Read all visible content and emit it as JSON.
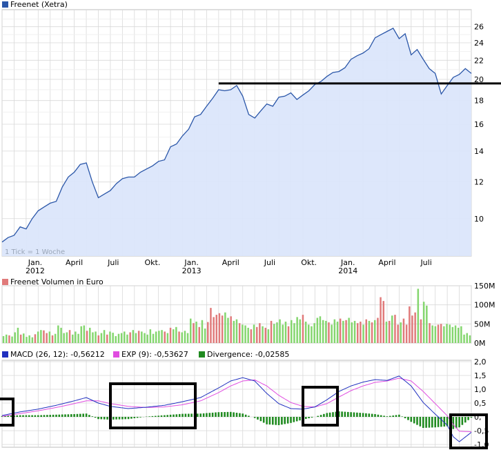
{
  "colors": {
    "price_line": "#2a56a8",
    "price_fill": "#dbe6fb",
    "grid": "#d8d8d8",
    "volume_up": "#84d66e",
    "volume_down": "#e07a7a",
    "macd": "#1f2fbf",
    "exp": "#e04ce0",
    "divergence": "#1f8a1f",
    "annotation": "#000000"
  },
  "icons": {
    "price_legend": "blue-square-icon",
    "volume_legend": "red-square-icon",
    "macd_legend": "blue-square-icon",
    "exp_legend": "magenta-square-icon",
    "div_legend": "green-square-icon"
  },
  "chart_data": [
    {
      "type": "area",
      "title": "Freenet (Xetra)",
      "note": "1 Tick = 1 Woche",
      "scale": "log",
      "ylim": [
        8.3,
        28.3
      ],
      "yticks": [
        10,
        12,
        14,
        16,
        18,
        20,
        22,
        24,
        26
      ],
      "x_labels": [
        {
          "text": "Jan.",
          "sub": "2012",
          "w": 11
        },
        {
          "text": "April",
          "sub": "",
          "w": 24
        },
        {
          "text": "Juli",
          "sub": "",
          "w": 37
        },
        {
          "text": "Okt.",
          "sub": "",
          "w": 50
        },
        {
          "text": "Jan.",
          "sub": "2013",
          "w": 63
        },
        {
          "text": "April",
          "sub": "",
          "w": 76
        },
        {
          "text": "Juli",
          "sub": "",
          "w": 89
        },
        {
          "text": "Okt.",
          "sub": "",
          "w": 102
        },
        {
          "text": "Jan.",
          "sub": "2014",
          "w": 115
        },
        {
          "text": "April",
          "sub": "",
          "w": 128
        },
        {
          "text": "Juli",
          "sub": "",
          "w": 141
        }
      ],
      "resistance_level": 19.6,
      "series": [
        {
          "name": "Freenet (Xetra)",
          "points": [
            [
              0,
              8.9
            ],
            [
              2,
              9.1
            ],
            [
              4,
              9.2
            ],
            [
              6,
              9.6
            ],
            [
              8,
              9.5
            ],
            [
              10,
              10.0
            ],
            [
              12,
              10.4
            ],
            [
              14,
              10.6
            ],
            [
              16,
              10.8
            ],
            [
              18,
              10.9
            ],
            [
              20,
              11.7
            ],
            [
              22,
              12.3
            ],
            [
              24,
              12.6
            ],
            [
              26,
              13.1
            ],
            [
              28,
              13.2
            ],
            [
              30,
              12.0
            ],
            [
              32,
              11.1
            ],
            [
              34,
              11.3
            ],
            [
              36,
              11.5
            ],
            [
              38,
              11.9
            ],
            [
              40,
              12.2
            ],
            [
              42,
              12.3
            ],
            [
              44,
              12.3
            ],
            [
              46,
              12.6
            ],
            [
              48,
              12.8
            ],
            [
              50,
              13.0
            ],
            [
              52,
              13.3
            ],
            [
              54,
              13.4
            ],
            [
              56,
              14.3
            ],
            [
              58,
              14.5
            ],
            [
              60,
              15.1
            ],
            [
              62,
              15.6
            ],
            [
              64,
              16.6
            ],
            [
              66,
              16.8
            ],
            [
              68,
              17.5
            ],
            [
              70,
              18.2
            ],
            [
              72,
              19.0
            ],
            [
              74,
              18.9
            ],
            [
              76,
              19.0
            ],
            [
              78,
              19.4
            ],
            [
              80,
              18.4
            ],
            [
              82,
              16.8
            ],
            [
              84,
              16.5
            ],
            [
              86,
              17.1
            ],
            [
              88,
              17.7
            ],
            [
              90,
              17.5
            ],
            [
              92,
              18.3
            ],
            [
              94,
              18.4
            ],
            [
              96,
              18.7
            ],
            [
              98,
              18.1
            ],
            [
              100,
              18.5
            ],
            [
              102,
              18.9
            ],
            [
              104,
              19.5
            ],
            [
              106,
              19.8
            ],
            [
              108,
              20.3
            ],
            [
              110,
              20.7
            ],
            [
              112,
              20.8
            ],
            [
              114,
              21.2
            ],
            [
              116,
              22.1
            ],
            [
              118,
              22.5
            ],
            [
              120,
              22.8
            ],
            [
              122,
              23.3
            ],
            [
              124,
              24.6
            ],
            [
              126,
              25.0
            ],
            [
              128,
              25.4
            ],
            [
              130,
              25.8
            ],
            [
              132,
              24.5
            ],
            [
              134,
              25.1
            ],
            [
              136,
              22.6
            ],
            [
              138,
              23.2
            ],
            [
              140,
              22.1
            ],
            [
              142,
              21.1
            ],
            [
              144,
              20.6
            ],
            [
              146,
              18.6
            ],
            [
              148,
              19.4
            ],
            [
              150,
              20.2
            ],
            [
              152,
              20.5
            ],
            [
              154,
              21.1
            ],
            [
              156,
              20.6
            ]
          ]
        }
      ]
    },
    {
      "type": "bar",
      "title": "Freenet Volumen in Euro",
      "unit": "Euro",
      "ylim": [
        0,
        150
      ],
      "yticks": [
        "0M",
        "50M",
        "100M",
        "150M"
      ],
      "series": [
        {
          "name": "Freenet Volumen in Euro",
          "values_million": [
            18,
            22,
            20,
            17,
            28,
            40,
            22,
            25,
            16,
            20,
            15,
            23,
            30,
            34,
            33,
            26,
            30,
            20,
            24,
            46,
            40,
            26,
            28,
            34,
            22,
            30,
            24,
            44,
            46,
            32,
            40,
            28,
            30,
            20,
            26,
            34,
            22,
            30,
            27,
            18,
            24,
            26,
            30,
            22,
            28,
            34,
            26,
            32,
            30,
            26,
            22,
            36,
            24,
            30,
            32,
            34,
            30,
            26,
            40,
            36,
            42,
            30,
            28,
            32,
            26,
            64,
            52,
            56,
            42,
            60,
            38,
            55,
            92,
            68,
            74,
            78,
            72,
            80,
            66,
            70,
            58,
            62,
            52,
            48,
            46,
            40,
            36,
            48,
            42,
            52,
            44,
            40,
            36,
            58,
            50,
            54,
            62,
            48,
            56,
            44,
            60,
            52,
            68,
            62,
            74,
            56,
            48,
            44,
            52,
            66,
            70,
            60,
            58,
            54,
            48,
            62,
            56,
            64,
            58,
            60,
            66,
            54,
            58,
            52,
            56,
            48,
            62,
            58,
            54,
            60,
            66,
            120,
            110,
            56,
            58,
            72,
            74,
            48,
            54,
            64,
            48,
            96,
            72,
            80,
            142,
            62,
            108,
            98,
            52,
            46,
            44,
            48,
            50,
            44,
            50,
            48,
            42,
            46,
            40,
            44,
            22,
            26,
            20
          ],
          "down_indices": [
            2,
            6,
            11,
            14,
            15,
            17,
            23,
            29,
            33,
            36,
            44,
            47,
            56,
            58,
            61,
            66,
            68,
            71,
            72,
            73,
            74,
            75,
            76,
            79,
            82,
            86,
            88,
            89,
            91,
            93,
            99,
            104,
            113,
            117,
            119,
            123,
            124,
            126,
            128,
            130,
            131,
            132,
            134,
            136,
            137,
            139,
            140,
            141,
            142,
            143,
            145,
            148,
            151,
            152
          ]
        }
      ]
    },
    {
      "type": "line",
      "title": "MACD",
      "ylim": [
        -1.1,
        2.05
      ],
      "yticks": [
        "2,0",
        "1,5",
        "1,0",
        "0,5",
        "0,",
        "-0,5",
        "-1,0"
      ],
      "legend": [
        {
          "label": "MACD (26, 12): -0,56212"
        },
        {
          "label": "EXP (9): -0,53627"
        },
        {
          "label": "Divergence: -0,02585"
        }
      ],
      "series": [
        {
          "name": "MACD (26, 12)",
          "points": [
            [
              0,
              0.05
            ],
            [
              6,
              0.18
            ],
            [
              12,
              0.28
            ],
            [
              18,
              0.42
            ],
            [
              24,
              0.58
            ],
            [
              28,
              0.7
            ],
            [
              32,
              0.5
            ],
            [
              36,
              0.38
            ],
            [
              42,
              0.3
            ],
            [
              48,
              0.35
            ],
            [
              54,
              0.42
            ],
            [
              60,
              0.55
            ],
            [
              66,
              0.7
            ],
            [
              72,
              1.05
            ],
            [
              76,
              1.3
            ],
            [
              80,
              1.42
            ],
            [
              84,
              1.3
            ],
            [
              88,
              0.85
            ],
            [
              92,
              0.48
            ],
            [
              96,
              0.3
            ],
            [
              100,
              0.28
            ],
            [
              104,
              0.36
            ],
            [
              108,
              0.62
            ],
            [
              112,
              0.92
            ],
            [
              116,
              1.12
            ],
            [
              120,
              1.26
            ],
            [
              124,
              1.35
            ],
            [
              128,
              1.32
            ],
            [
              132,
              1.48
            ],
            [
              136,
              1.12
            ],
            [
              140,
              0.52
            ],
            [
              144,
              0.1
            ],
            [
              148,
              -0.3
            ],
            [
              150,
              -0.72
            ],
            [
              152,
              -0.9
            ],
            [
              156,
              -0.56
            ]
          ]
        },
        {
          "name": "EXP (9)",
          "points": [
            [
              0,
              0.02
            ],
            [
              6,
              0.12
            ],
            [
              12,
              0.22
            ],
            [
              18,
              0.34
            ],
            [
              24,
              0.48
            ],
            [
              28,
              0.58
            ],
            [
              32,
              0.58
            ],
            [
              36,
              0.48
            ],
            [
              42,
              0.38
            ],
            [
              48,
              0.34
            ],
            [
              54,
              0.36
            ],
            [
              60,
              0.44
            ],
            [
              66,
              0.58
            ],
            [
              72,
              0.88
            ],
            [
              76,
              1.12
            ],
            [
              80,
              1.3
            ],
            [
              84,
              1.34
            ],
            [
              88,
              1.12
            ],
            [
              92,
              0.78
            ],
            [
              96,
              0.52
            ],
            [
              100,
              0.38
            ],
            [
              104,
              0.36
            ],
            [
              108,
              0.48
            ],
            [
              112,
              0.72
            ],
            [
              116,
              0.95
            ],
            [
              120,
              1.12
            ],
            [
              124,
              1.25
            ],
            [
              128,
              1.3
            ],
            [
              132,
              1.4
            ],
            [
              136,
              1.3
            ],
            [
              140,
              0.92
            ],
            [
              144,
              0.48
            ],
            [
              148,
              0.04
            ],
            [
              150,
              -0.28
            ],
            [
              152,
              -0.52
            ],
            [
              156,
              -0.54
            ]
          ]
        },
        {
          "name": "Divergence",
          "points": [
            [
              0,
              0.03
            ],
            [
              6,
              0.06
            ],
            [
              12,
              0.06
            ],
            [
              18,
              0.08
            ],
            [
              24,
              0.1
            ],
            [
              28,
              0.12
            ],
            [
              32,
              -0.08
            ],
            [
              36,
              -0.1
            ],
            [
              42,
              -0.08
            ],
            [
              48,
              0.01
            ],
            [
              54,
              0.06
            ],
            [
              60,
              0.11
            ],
            [
              66,
              0.12
            ],
            [
              72,
              0.17
            ],
            [
              76,
              0.18
            ],
            [
              80,
              0.12
            ],
            [
              84,
              -0.04
            ],
            [
              88,
              -0.27
            ],
            [
              92,
              -0.3
            ],
            [
              96,
              -0.22
            ],
            [
              100,
              -0.1
            ],
            [
              104,
              0.0
            ],
            [
              108,
              0.14
            ],
            [
              112,
              0.2
            ],
            [
              116,
              0.17
            ],
            [
              120,
              0.14
            ],
            [
              124,
              0.1
            ],
            [
              128,
              0.02
            ],
            [
              132,
              0.08
            ],
            [
              136,
              -0.18
            ],
            [
              140,
              -0.4
            ],
            [
              144,
              -0.38
            ],
            [
              148,
              -0.34
            ],
            [
              150,
              -0.44
            ],
            [
              152,
              -0.38
            ],
            [
              156,
              -0.03
            ]
          ]
        }
      ]
    }
  ]
}
